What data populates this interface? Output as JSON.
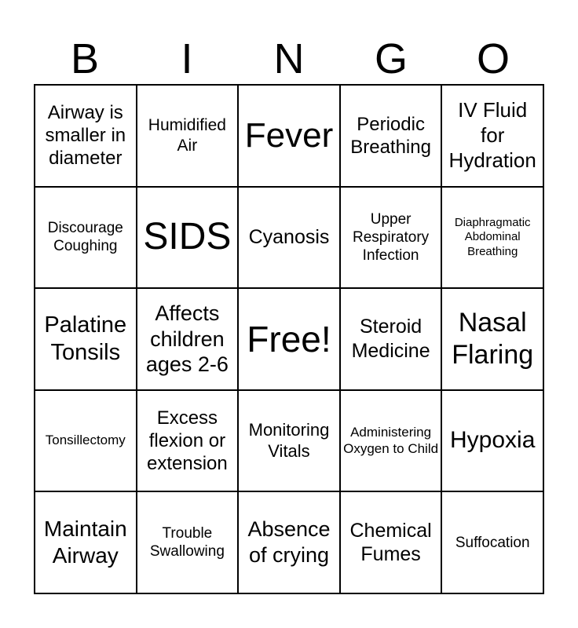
{
  "header": [
    "B",
    "I",
    "N",
    "G",
    "O"
  ],
  "cells": [
    "Airway is smaller in diameter",
    "Humidified Air",
    "Fever",
    "Periodic Breathing",
    "IV Fluid for Hydration",
    "Discourage Coughing",
    "SIDS",
    "Cyanosis",
    "Upper Respiratory Infection",
    "Diaphragmatic Abdominal Breathing",
    "Palatine Tonsils",
    "Affects children ages 2-6",
    "Free!",
    "Steroid Medicine",
    "Nasal Flaring",
    "Tonsillectomy",
    "Excess flexion or extension",
    "Monitoring Vitals",
    "Administering Oxygen to Child",
    "Hypoxia",
    "Maintain Airway",
    "Trouble Swallowing",
    "Absence of crying",
    "Chemical Fumes",
    "Suffocation"
  ]
}
